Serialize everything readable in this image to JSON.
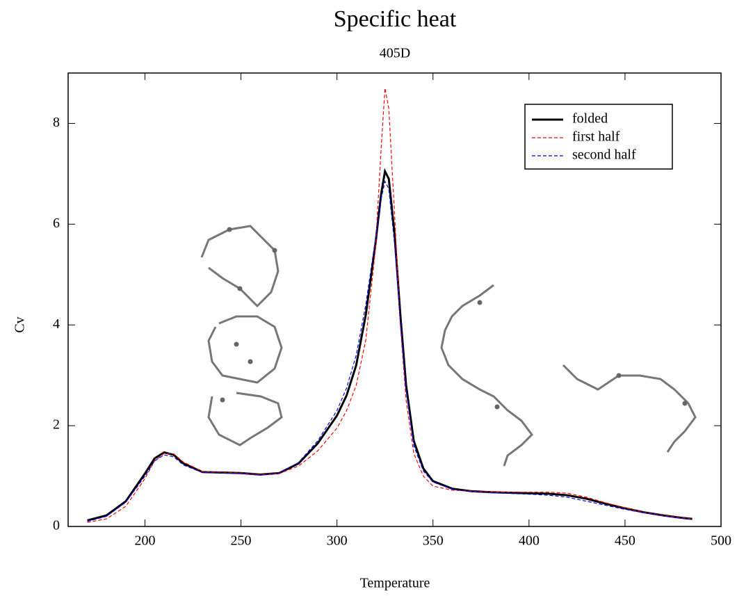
{
  "chart_data": {
    "type": "line",
    "title": "Specific heat",
    "subtitle": "405D",
    "x_label": "Temperature",
    "y_label": "Cv",
    "xlim": [
      160,
      500
    ],
    "xticks": [
      200,
      250,
      300,
      350,
      400,
      450,
      500
    ],
    "ylim": [
      0,
      9
    ],
    "yticks": [
      0,
      2,
      4,
      6,
      8
    ],
    "legend": "upper right",
    "x": [
      170,
      180,
      190,
      200,
      205,
      210,
      215,
      220,
      230,
      240,
      250,
      260,
      270,
      280,
      290,
      300,
      305,
      310,
      315,
      320,
      323,
      325,
      327,
      330,
      333,
      336,
      340,
      345,
      350,
      360,
      370,
      380,
      400,
      410,
      420,
      430,
      440,
      450,
      460,
      470,
      480,
      485
    ],
    "series": [
      {
        "name": "folded",
        "color": "#000000",
        "dashed": false,
        "values": [
          0.12,
          0.22,
          0.5,
          1.05,
          1.35,
          1.47,
          1.42,
          1.25,
          1.08,
          1.07,
          1.06,
          1.03,
          1.06,
          1.25,
          1.65,
          2.2,
          2.6,
          3.2,
          4.2,
          5.6,
          6.6,
          7.05,
          6.9,
          5.8,
          4.2,
          2.8,
          1.7,
          1.15,
          0.9,
          0.75,
          0.7,
          0.68,
          0.66,
          0.65,
          0.62,
          0.55,
          0.45,
          0.36,
          0.28,
          0.22,
          0.17,
          0.15
        ]
      },
      {
        "name": "first half",
        "color": "#ff0000",
        "dashed": true,
        "values": [
          0.08,
          0.15,
          0.4,
          0.95,
          1.3,
          1.45,
          1.44,
          1.28,
          1.09,
          1.07,
          1.06,
          1.03,
          1.05,
          1.2,
          1.5,
          1.95,
          2.3,
          2.8,
          3.7,
          5.5,
          7.5,
          8.7,
          8.3,
          6.2,
          4.0,
          2.5,
          1.45,
          1.0,
          0.8,
          0.72,
          0.7,
          0.68,
          0.68,
          0.68,
          0.66,
          0.58,
          0.47,
          0.37,
          0.28,
          0.22,
          0.17,
          0.15
        ]
      },
      {
        "name": "second half",
        "color": "#0000ff",
        "dashed": true,
        "values": [
          0.1,
          0.2,
          0.48,
          1.0,
          1.3,
          1.42,
          1.38,
          1.22,
          1.07,
          1.06,
          1.05,
          1.02,
          1.06,
          1.27,
          1.7,
          2.3,
          2.75,
          3.4,
          4.4,
          5.7,
          6.5,
          6.85,
          6.7,
          5.6,
          4.1,
          2.7,
          1.6,
          1.1,
          0.88,
          0.74,
          0.69,
          0.67,
          0.64,
          0.62,
          0.58,
          0.5,
          0.42,
          0.34,
          0.27,
          0.21,
          0.16,
          0.14
        ]
      }
    ]
  }
}
